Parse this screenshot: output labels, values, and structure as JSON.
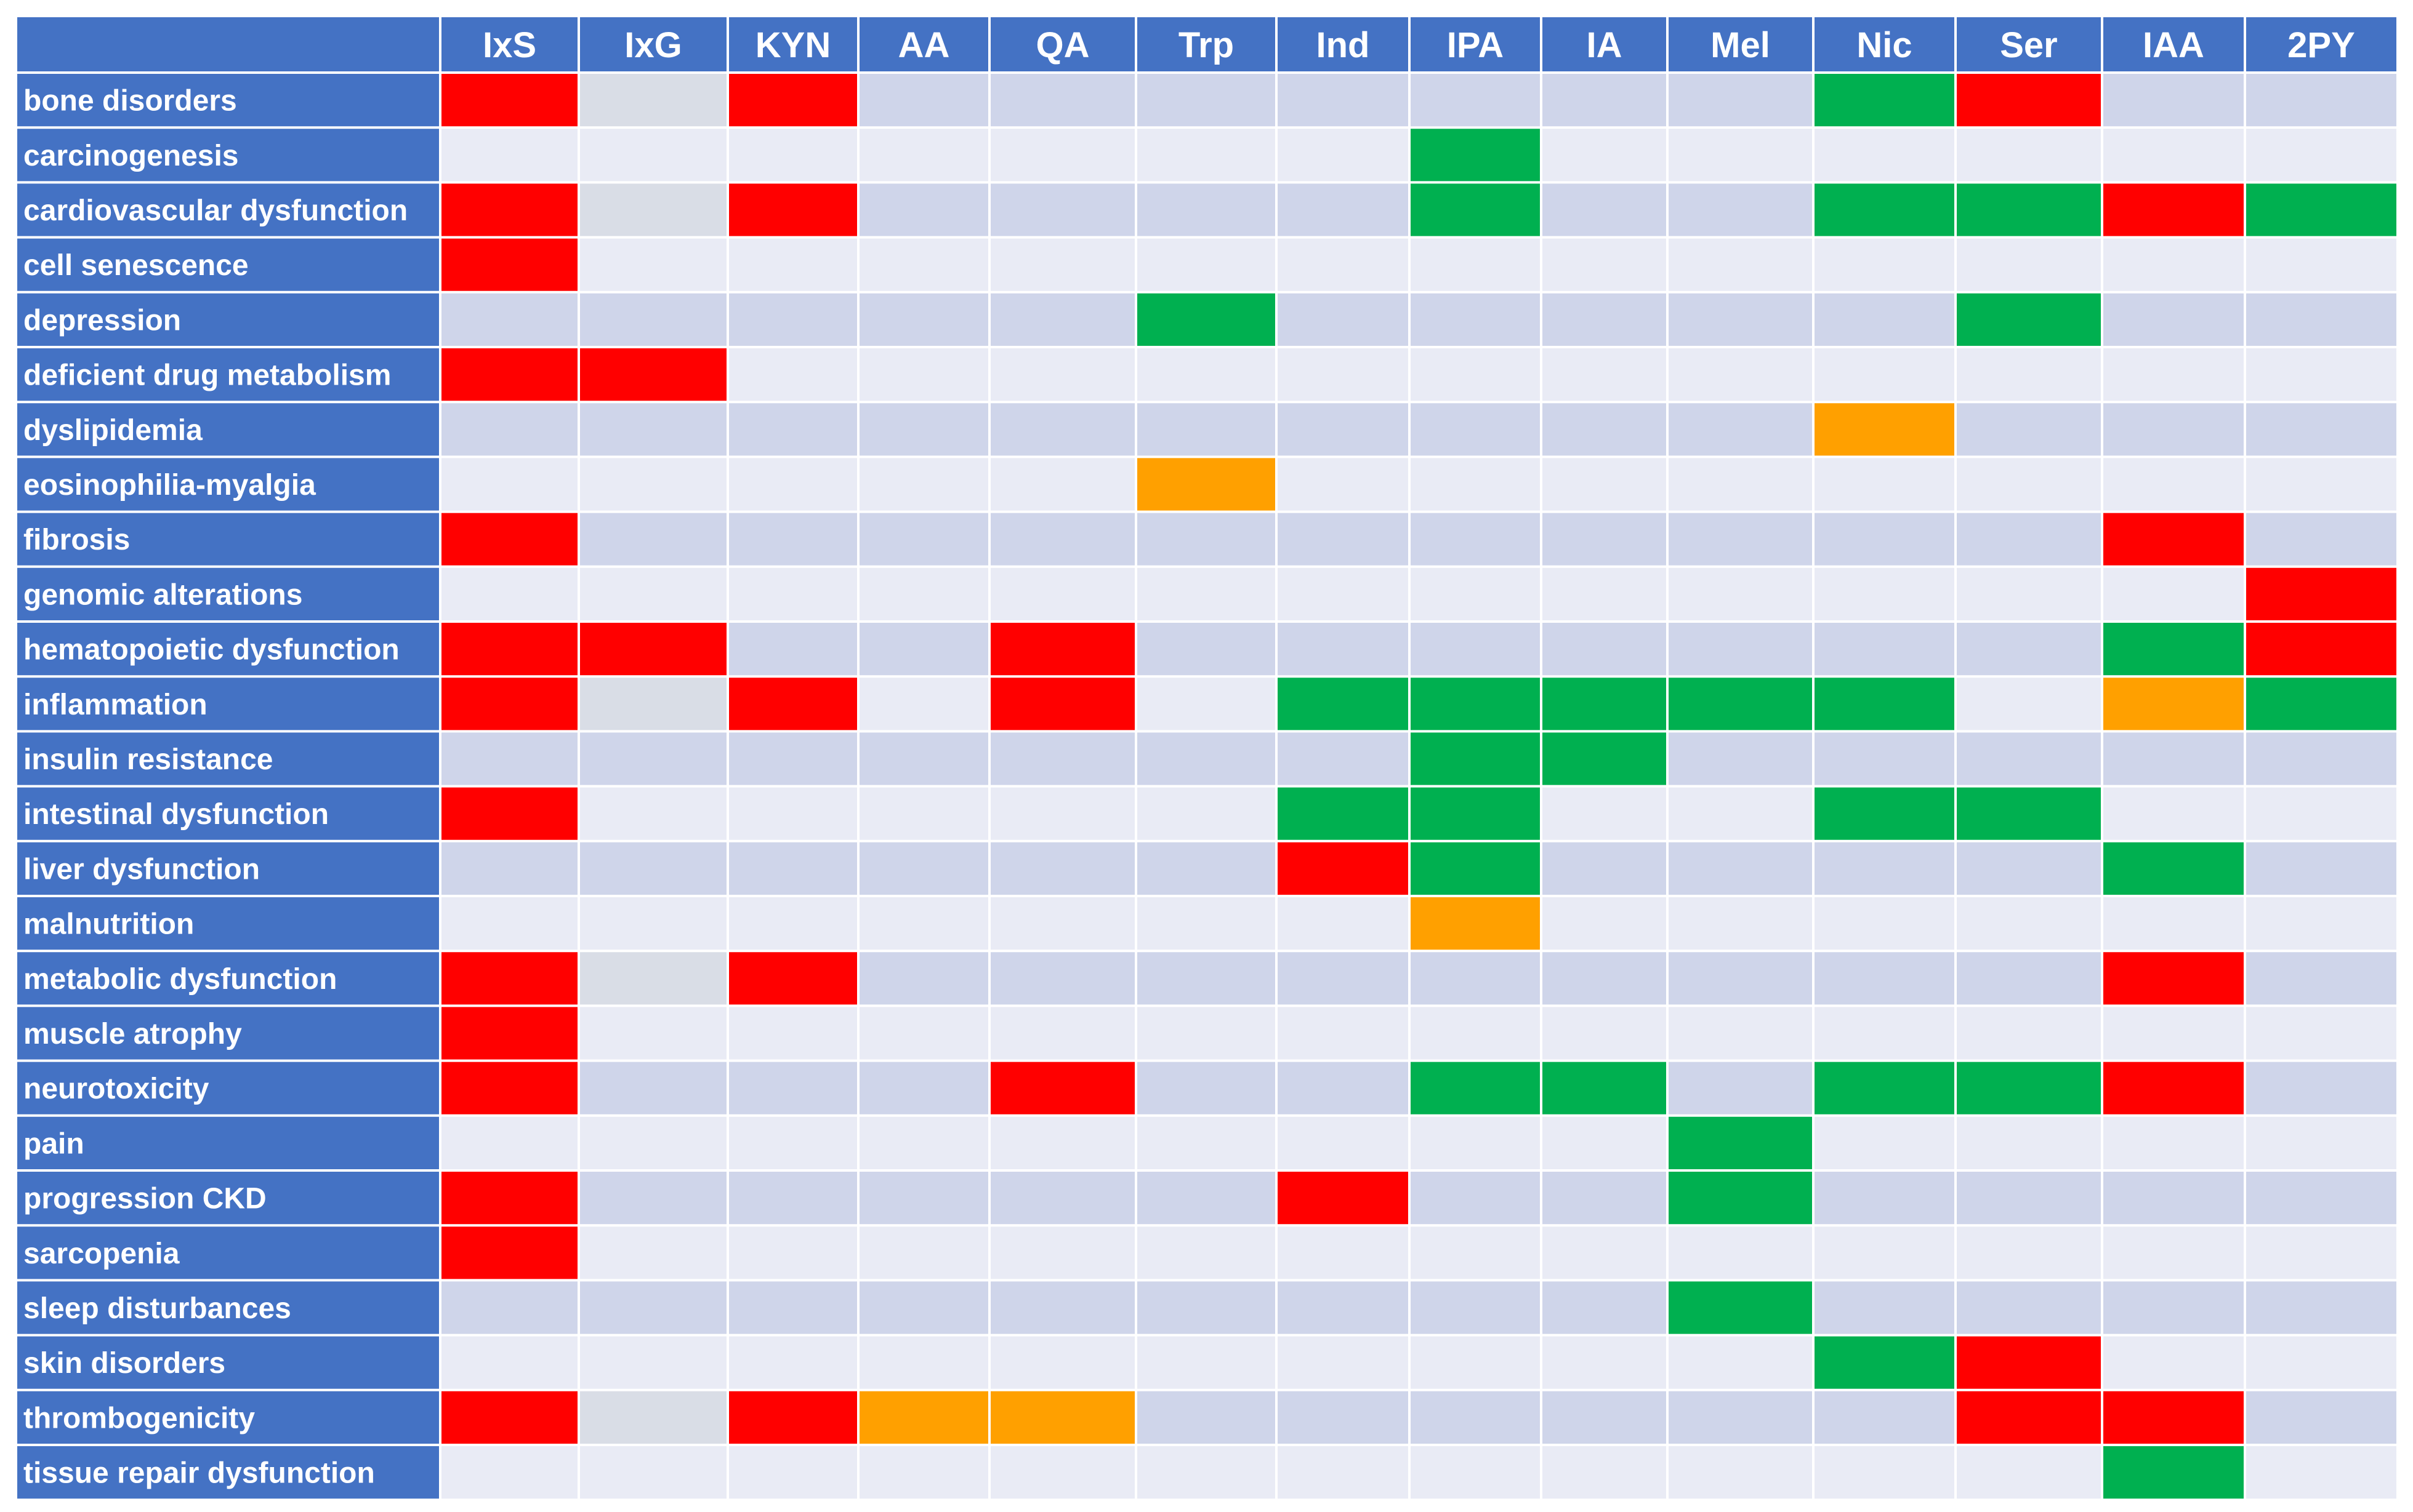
{
  "chart_data": {
    "type": "heatmap",
    "columns": [
      "IxS",
      "IxG",
      "KYN",
      "AA",
      "QA",
      "Trp",
      "Ind",
      "IPA",
      "IA",
      "Mel",
      "Nic",
      "Ser",
      "IAA",
      "2PY"
    ],
    "rows": [
      "bone disorders",
      "carcinogenesis",
      "cardiovascular dysfunction",
      "cell senescence",
      "depression",
      "deficient drug metabolism",
      "dyslipidemia",
      "eosinophilia-myalgia",
      "fibrosis",
      "genomic alterations",
      "hematopoietic dysfunction",
      "inflammation",
      "insulin resistance",
      "intestinal dysfunction",
      "liver dysfunction",
      "malnutrition",
      "metabolic dysfunction",
      "muscle atrophy",
      "neurotoxicity",
      "pain",
      "progression CKD",
      "sarcopenia",
      "sleep disturbances",
      "skin disorders",
      "thrombogenicity",
      "tissue repair dysfunction"
    ],
    "cells": [
      [
        "R",
        "g",
        "R",
        "",
        "",
        "",
        "",
        "",
        "",
        "",
        "G",
        "R",
        "",
        ""
      ],
      [
        "",
        "",
        "",
        "",
        "",
        "",
        "",
        "G",
        "",
        "",
        "",
        "",
        "",
        ""
      ],
      [
        "R",
        "g",
        "R",
        "",
        "",
        "",
        "",
        "G",
        "",
        "",
        "G",
        "G",
        "R",
        "G"
      ],
      [
        "R",
        "",
        "",
        "",
        "",
        "",
        "",
        "",
        "",
        "",
        "",
        "",
        "",
        ""
      ],
      [
        "",
        "",
        "",
        "",
        "",
        "G",
        "",
        "",
        "",
        "",
        "",
        "G",
        "",
        ""
      ],
      [
        "R",
        "R",
        "",
        "",
        "",
        "",
        "",
        "",
        "",
        "",
        "",
        "",
        "",
        ""
      ],
      [
        "",
        "",
        "",
        "",
        "",
        "",
        "",
        "",
        "",
        "",
        "O",
        "",
        "",
        ""
      ],
      [
        "",
        "",
        "",
        "",
        "",
        "O",
        "",
        "",
        "",
        "",
        "",
        "",
        "",
        ""
      ],
      [
        "R",
        "",
        "",
        "",
        "",
        "",
        "",
        "",
        "",
        "",
        "",
        "",
        "R",
        ""
      ],
      [
        "",
        "",
        "",
        "",
        "",
        "",
        "",
        "",
        "",
        "",
        "",
        "",
        "",
        "R"
      ],
      [
        "R",
        "R",
        "",
        "",
        "R",
        "",
        "",
        "",
        "",
        "",
        "",
        "",
        "G",
        "R"
      ],
      [
        "R",
        "g",
        "R",
        "",
        "R",
        "",
        "G",
        "G",
        "G",
        "G",
        "G",
        "",
        "O",
        "G"
      ],
      [
        "",
        "",
        "",
        "",
        "",
        "",
        "",
        "G",
        "G",
        "",
        "",
        "",
        "",
        ""
      ],
      [
        "R",
        "",
        "",
        "",
        "",
        "",
        "G",
        "G",
        "",
        "",
        "G",
        "G",
        "",
        ""
      ],
      [
        "",
        "",
        "",
        "",
        "",
        "",
        "R",
        "G",
        "",
        "",
        "",
        "",
        "G",
        ""
      ],
      [
        "",
        "",
        "",
        "",
        "",
        "",
        "",
        "O",
        "",
        "",
        "",
        "",
        "",
        ""
      ],
      [
        "R",
        "g",
        "R",
        "",
        "",
        "",
        "",
        "",
        "",
        "",
        "",
        "",
        "R",
        ""
      ],
      [
        "R",
        "",
        "",
        "",
        "",
        "",
        "",
        "",
        "",
        "",
        "",
        "",
        "",
        ""
      ],
      [
        "R",
        "",
        "",
        "",
        "R",
        "",
        "",
        "G",
        "G",
        "",
        "G",
        "G",
        "R",
        ""
      ],
      [
        "",
        "",
        "",
        "",
        "",
        "",
        "",
        "",
        "",
        "G",
        "",
        "",
        "",
        ""
      ],
      [
        "R",
        "",
        "",
        "",
        "",
        "",
        "R",
        "",
        "",
        "G",
        "",
        "",
        "",
        ""
      ],
      [
        "R",
        "",
        "",
        "",
        "",
        "",
        "",
        "",
        "",
        "",
        "",
        "",
        "",
        ""
      ],
      [
        "",
        "",
        "",
        "",
        "",
        "",
        "",
        "",
        "",
        "G",
        "",
        "",
        "",
        ""
      ],
      [
        "",
        "",
        "",
        "",
        "",
        "",
        "",
        "",
        "",
        "",
        "G",
        "R",
        "",
        ""
      ],
      [
        "R",
        "g",
        "R",
        "O",
        "O",
        "",
        "",
        "",
        "",
        "",
        "",
        "R",
        "R",
        ""
      ],
      [
        "",
        "",
        "",
        "",
        "",
        "",
        "",
        "",
        "",
        "",
        "",
        "",
        "G",
        ""
      ]
    ],
    "colors": {
      "R": "#ff0000",
      "G": "#00b050",
      "O": "#ffa000",
      "g": "#d9dde6",
      "header_bg": "#4472c4",
      "band_dark": "#cfd5ea",
      "band_light": "#e9ebf5",
      "grid_line": "#ffffff"
    },
    "legend": "none",
    "grid": true
  }
}
